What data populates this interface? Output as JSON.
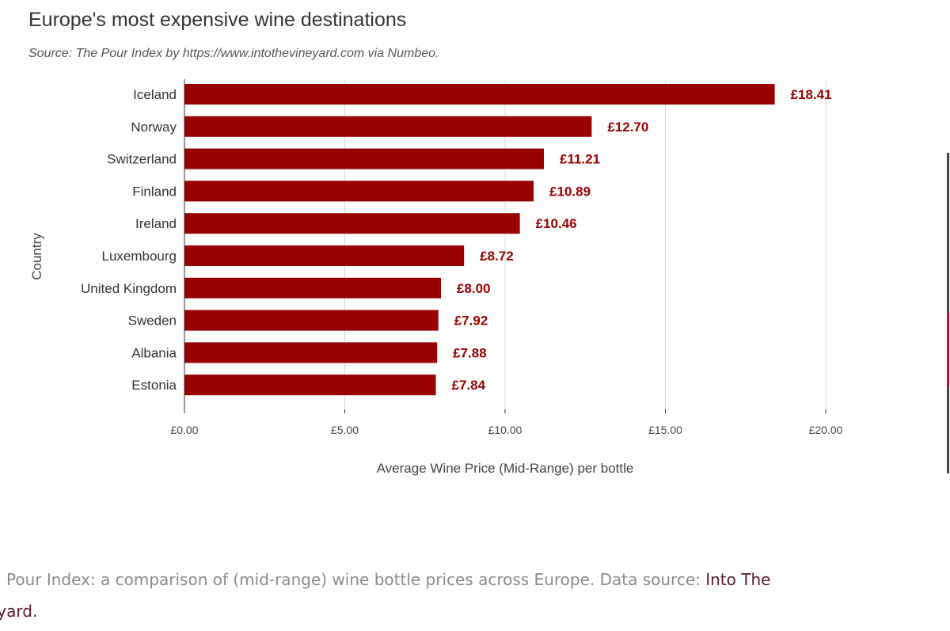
{
  "chart_data": {
    "type": "bar",
    "orientation": "horizontal",
    "title": "Europe's most expensive wine destinations",
    "subtitle": "Source: The Pour Index by https://www.intothevineyard.com via Numbeo.",
    "xlabel": "Average Wine Price (Mid-Range) per bottle",
    "ylabel": "Country",
    "categories": [
      "Iceland",
      "Norway",
      "Switzerland",
      "Finland",
      "Ireland",
      "Luxembourg",
      "United Kingdom",
      "Sweden",
      "Albania",
      "Estonia"
    ],
    "values": [
      18.41,
      12.7,
      11.21,
      10.89,
      10.46,
      8.72,
      8.0,
      7.92,
      7.88,
      7.84
    ],
    "data_labels": [
      "£18.41",
      "£12.70",
      "£11.21",
      "£10.89",
      "£10.46",
      "£8.72",
      "£8.00",
      "£7.92",
      "£7.88",
      "£7.84"
    ],
    "xticks": [
      0,
      5,
      10,
      15,
      20
    ],
    "xtick_labels": [
      "£0.00",
      "£5.00",
      "£10.00",
      "£15.00",
      "£20.00"
    ],
    "xlim": [
      0,
      20
    ],
    "grid": true,
    "bar_color": "#990000"
  },
  "caption": {
    "text": "Pour Index: a comparison of (mid-range) wine bottle prices across Europe. Data source: ",
    "link_text": "Into The",
    "link_text_2": "eyard."
  }
}
